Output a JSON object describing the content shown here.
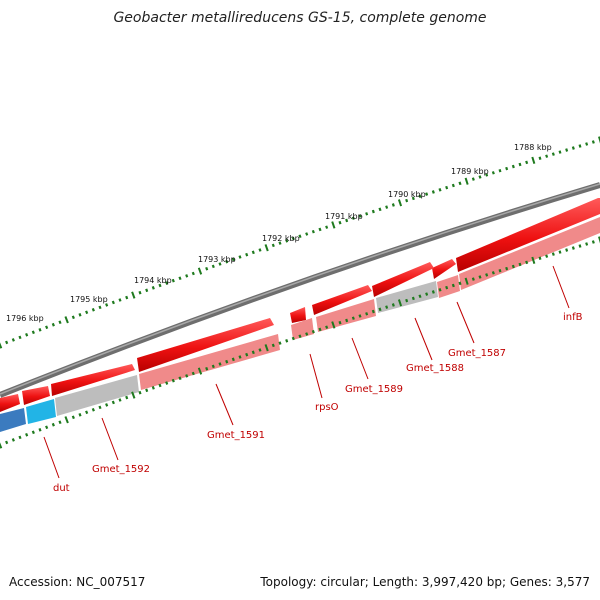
{
  "title": "Geobacter metallireducens GS-15, complete genome",
  "footer": {
    "accession": "Accession: NC_007517",
    "info": "Topology: circular; Length: 3,997,420 bp; Genes: 3,577"
  },
  "ruler_labels": [
    "1788 kbp",
    "1789 kbp",
    "1790 kbp",
    "1791 kbp",
    "1792 kbp",
    "1793 kbp",
    "1794 kbp",
    "1795 kbp",
    "1796 kbp"
  ],
  "gene_labels": [
    "infB",
    "Gmet_1587",
    "Gmet_1588",
    "Gmet_1589",
    "rpsO",
    "Gmet_1591",
    "Gmet_1592",
    "dut"
  ],
  "colors": {
    "backbone": "#7a7a7a",
    "gene_forward": "#ee1111",
    "gene_shadow": "#f08a8a",
    "gene_grey": "#bdbdbd",
    "gene_blue": "#3b7bbf",
    "gene_cyan": "#22b4e6",
    "tick": "#1e7a1e",
    "label": "#c00000"
  }
}
